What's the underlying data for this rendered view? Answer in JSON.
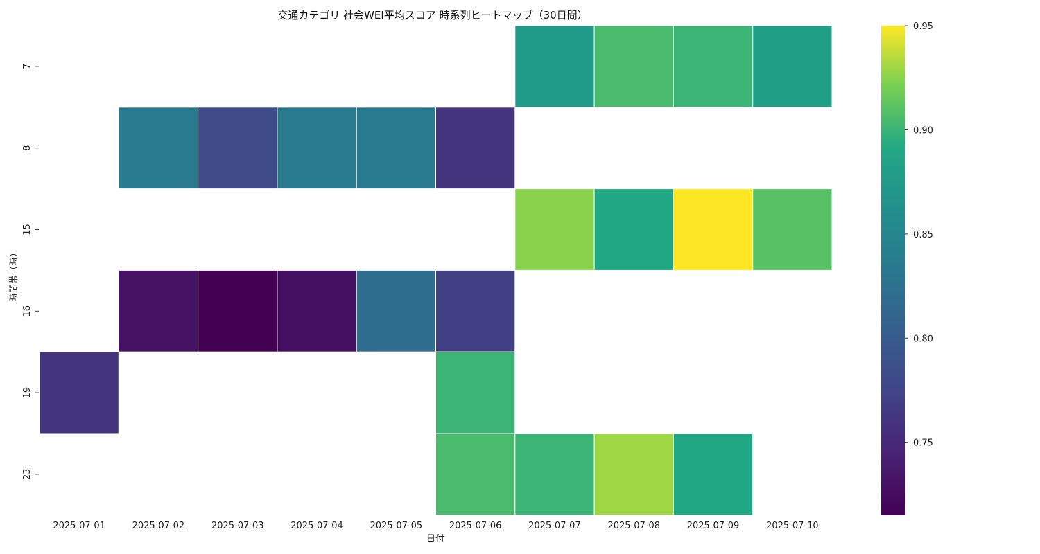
{
  "chart_data": {
    "type": "heatmap",
    "title": "交通カテゴリ 社会WEI平均スコア 時系列ヒートマップ（30日間）",
    "xlabel": "日付",
    "ylabel": "時間帯（時）",
    "x": [
      "2025-07-01",
      "2025-07-02",
      "2025-07-03",
      "2025-07-04",
      "2025-07-05",
      "2025-07-06",
      "2025-07-07",
      "2025-07-08",
      "2025-07-09",
      "2025-07-10"
    ],
    "y": [
      "7",
      "8",
      "15",
      "16",
      "19",
      "23"
    ],
    "values": [
      [
        null,
        null,
        null,
        null,
        null,
        null,
        0.875,
        0.905,
        0.9,
        0.88
      ],
      [
        null,
        0.835,
        0.78,
        0.835,
        0.835,
        0.76,
        null,
        null,
        null,
        null
      ],
      [
        null,
        null,
        null,
        null,
        null,
        null,
        0.925,
        0.89,
        0.95,
        0.91
      ],
      [
        null,
        0.73,
        0.715,
        0.728,
        0.82,
        0.77,
        null,
        null,
        null,
        null
      ],
      [
        0.76,
        null,
        null,
        null,
        null,
        0.9,
        null,
        null,
        null,
        null
      ],
      [
        null,
        null,
        null,
        null,
        null,
        0.905,
        0.9,
        0.93,
        0.89,
        null
      ]
    ],
    "colorbar": {
      "colormap": "viridis",
      "vmin": 0.715,
      "vmax": 0.95,
      "ticks": [
        "0.75",
        "0.80",
        "0.85",
        "0.90",
        "0.95"
      ],
      "tick_values": [
        0.75,
        0.8,
        0.85,
        0.9,
        0.95
      ]
    },
    "grid": false,
    "legend": "colorbar-right"
  }
}
